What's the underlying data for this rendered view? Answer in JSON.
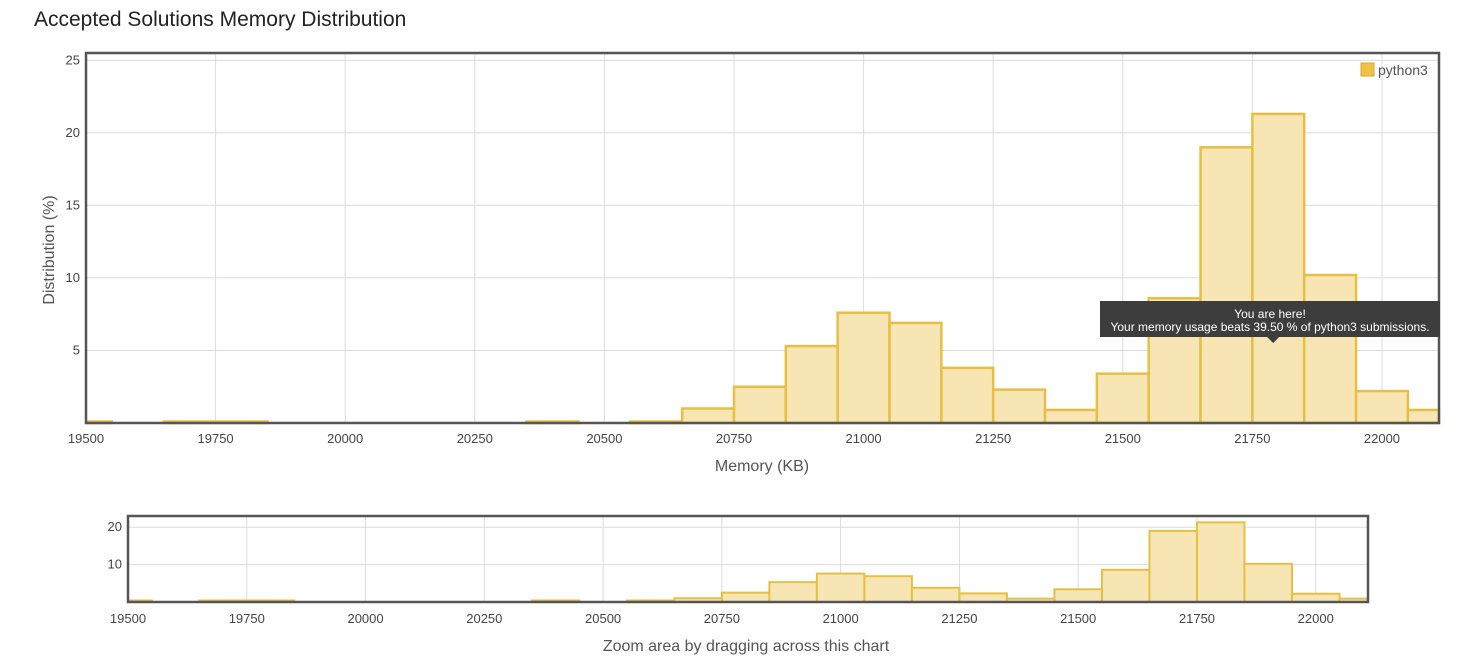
{
  "page": {
    "title": "Accepted Solutions Memory Distribution"
  },
  "colors": {
    "bar_fill": "#f7e6b3",
    "bar_stroke": "#e8bf45",
    "grid": "#dcdcdc",
    "frame": "#555555",
    "tooltip_bg": "#3d3d3d"
  },
  "chart_data": [
    {
      "type": "bar",
      "role": "main",
      "title": "",
      "xlabel": "Memory (KB)",
      "ylabel": "Distribution (%)",
      "xlim": [
        19500,
        22110
      ],
      "ylim": [
        0,
        25.5
      ],
      "xticks": [
        19500,
        19750,
        20000,
        20250,
        20500,
        20750,
        21000,
        21250,
        21500,
        21750,
        22000
      ],
      "yticks": [
        5,
        10,
        15,
        20,
        25
      ],
      "grid": true,
      "bin_width": 100,
      "series": [
        {
          "name": "python3",
          "bins": [
            {
              "start": 19500,
              "end": 19550,
              "value": 0.1
            },
            {
              "start": 19650,
              "end": 19850,
              "value": 0.1
            },
            {
              "start": 20350,
              "end": 20450,
              "value": 0.1
            },
            {
              "start": 20550,
              "end": 20650,
              "value": 0.1
            },
            {
              "start": 20650,
              "end": 20750,
              "value": 1.0
            },
            {
              "start": 20750,
              "end": 20850,
              "value": 2.5
            },
            {
              "start": 20850,
              "end": 20950,
              "value": 5.3
            },
            {
              "start": 20950,
              "end": 21050,
              "value": 7.6
            },
            {
              "start": 21050,
              "end": 21150,
              "value": 6.9
            },
            {
              "start": 21150,
              "end": 21250,
              "value": 3.8
            },
            {
              "start": 21250,
              "end": 21350,
              "value": 2.3
            },
            {
              "start": 21350,
              "end": 21450,
              "value": 0.9
            },
            {
              "start": 21450,
              "end": 21550,
              "value": 3.4
            },
            {
              "start": 21550,
              "end": 21650,
              "value": 8.6
            },
            {
              "start": 21650,
              "end": 21750,
              "value": 19.0
            },
            {
              "start": 21750,
              "end": 21850,
              "value": 21.3
            },
            {
              "start": 21850,
              "end": 21950,
              "value": 10.2
            },
            {
              "start": 21950,
              "end": 22050,
              "value": 2.2
            },
            {
              "start": 22050,
              "end": 22110,
              "value": 0.9
            }
          ]
        }
      ],
      "legend": {
        "placement": "top-right",
        "entries": [
          "python3"
        ]
      },
      "tooltip": {
        "line1": "You are here!",
        "line2": "Your memory usage beats 39.50 % of python3 submissions.",
        "at_x": 21790
      }
    },
    {
      "type": "bar",
      "role": "navigator",
      "xlim": [
        19500,
        22110
      ],
      "ylim": [
        0,
        23
      ],
      "xticks": [
        19500,
        19750,
        20000,
        20250,
        20500,
        20750,
        21000,
        21250,
        21500,
        21750,
        22000
      ],
      "yticks": [
        10,
        20
      ],
      "grid": true,
      "caption": "Zoom area by dragging across this chart"
    }
  ]
}
